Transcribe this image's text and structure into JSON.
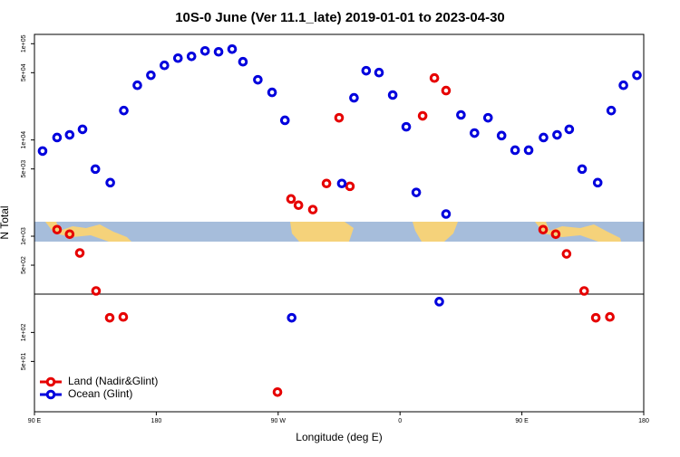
{
  "chart_data": {
    "type": "scatter",
    "title": "10S-0 June (Ver 11.1_late)   2019-01-01 to 2023-04-30",
    "x_label": "Longitude (deg E)",
    "y_label": "N Total",
    "log_y": true,
    "legend": "bottom-left",
    "xlim": [
      90,
      540
    ],
    "xticks": [
      {
        "value": 90,
        "label": "90 E"
      },
      {
        "value": 180,
        "label": "180"
      },
      {
        "value": 270,
        "label": "90 W"
      },
      {
        "value": 360,
        "label": "0"
      },
      {
        "value": 450,
        "label": "90 E"
      },
      {
        "value": 540,
        "label": "180"
      }
    ],
    "ylim": [
      15,
      125000
    ],
    "yticks": [
      {
        "value": 100000,
        "label": "1e+05"
      },
      {
        "value": 50000,
        "label": "5e+04"
      },
      {
        "value": 10000,
        "label": "1e+04"
      },
      {
        "value": 5000,
        "label": "5e+03"
      },
      {
        "value": 1000,
        "label": "1e+03"
      },
      {
        "value": 500,
        "label": "5e+02"
      },
      {
        "value": 100,
        "label": "1e+02"
      },
      {
        "value": 50,
        "label": "5e+01"
      }
    ],
    "series": [
      {
        "name": "Land (Nadir&Glint)",
        "color": "#e60000",
        "x": [
          106.7,
          116,
          123.5,
          135.5,
          145.6,
          155.6,
          269.5,
          279.5,
          285,
          295.6,
          305.7,
          315,
          323,
          376.7,
          385.4,
          394,
          465.7,
          475,
          483,
          496,
          504.6,
          515
        ],
        "values": [
          1170,
          1050,
          670,
          270,
          142,
          145,
          24,
          2440,
          2100,
          1890,
          3530,
          17000,
          3300,
          17800,
          44000,
          32600,
          1170,
          1050,
          655,
          270,
          142,
          145
        ]
      },
      {
        "name": "Ocean (Glint)",
        "color": "#0000dd",
        "x": [
          96,
          106.7,
          116,
          125.5,
          135,
          146,
          156,
          166,
          176,
          186,
          196,
          206,
          216,
          226,
          236,
          244,
          255,
          265.5,
          275,
          280,
          317,
          326,
          335,
          344.5,
          354.6,
          364.6,
          372,
          389,
          394,
          405,
          415,
          425,
          435,
          445,
          455,
          466,
          476,
          485,
          494.5,
          506,
          516,
          525,
          535
        ],
        "values": [
          7670,
          10600,
          11300,
          12900,
          4980,
          3600,
          20200,
          37000,
          47000,
          59600,
          70800,
          73900,
          84100,
          82400,
          87900,
          65000,
          42200,
          31200,
          16000,
          142,
          3530,
          27400,
          52400,
          50100,
          29300,
          13700,
          2850,
          209,
          1700,
          18200,
          11800,
          17000,
          11100,
          7830,
          7830,
          10600,
          11300,
          12900,
          4980,
          3600,
          20200,
          37000,
          47000
        ]
      }
    ]
  }
}
